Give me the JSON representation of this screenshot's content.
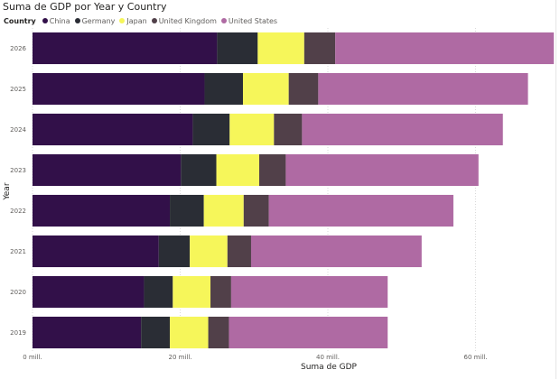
{
  "colors": {
    "China": "#321049",
    "Germany": "#2a2d35",
    "Japan": "#f6f65a",
    "United Kingdom": "#514049",
    "United States": "#af6aa3",
    "grid": "#d9d9d9",
    "text": "#605e5c"
  },
  "legend": {
    "heading": "Country"
  },
  "chart_data": {
    "type": "bar",
    "orientation": "horizontal",
    "stacked": true,
    "title": "Suma de GDP por Year y Country",
    "xlabel": "Suma de GDP",
    "ylabel": "Year",
    "xlim": [
      0,
      70
    ],
    "x_ticks": [
      0,
      20,
      40,
      60
    ],
    "x_tick_labels": [
      "0 mill.",
      "20 mill.",
      "40 mill.",
      "60 mill."
    ],
    "grid": true,
    "legend_position": "top-left",
    "categories": [
      "2026",
      "2025",
      "2024",
      "2023",
      "2022",
      "2021",
      "2020",
      "2019"
    ],
    "series": [
      {
        "name": "China",
        "values": [
          25.0,
          23.3,
          21.7,
          20.1,
          18.6,
          17.1,
          15.1,
          14.7
        ]
      },
      {
        "name": "Germany",
        "values": [
          5.5,
          5.2,
          5.0,
          4.8,
          4.6,
          4.2,
          3.9,
          3.9
        ]
      },
      {
        "name": "Japan",
        "values": [
          6.3,
          6.2,
          6.0,
          5.8,
          5.4,
          5.1,
          5.1,
          5.2
        ]
      },
      {
        "name": "United Kingdom",
        "values": [
          4.2,
          4.0,
          3.8,
          3.6,
          3.4,
          3.2,
          2.8,
          2.8
        ]
      },
      {
        "name": "United States",
        "values": [
          29.6,
          28.4,
          27.2,
          26.1,
          25.0,
          23.1,
          21.2,
          21.5
        ]
      }
    ]
  }
}
